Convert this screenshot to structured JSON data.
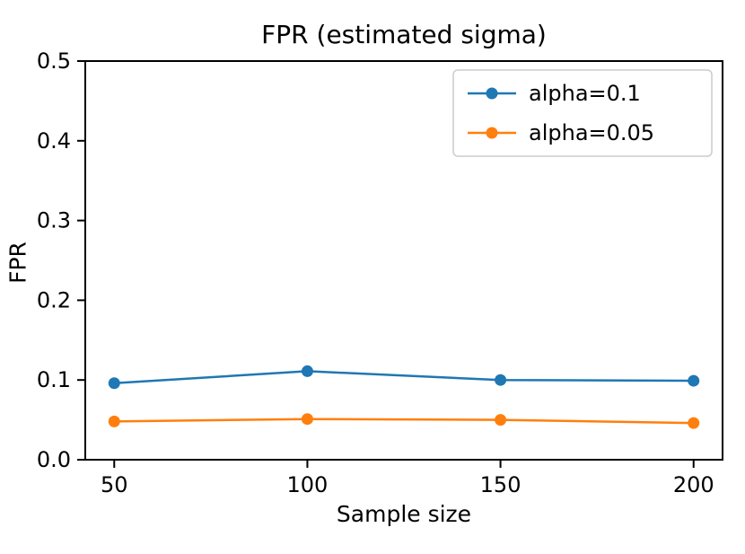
{
  "chart_data": {
    "type": "line",
    "title": "FPR (estimated sigma)",
    "xlabel": "Sample size",
    "ylabel": "FPR",
    "x": [
      50,
      100,
      150,
      200
    ],
    "series": [
      {
        "name": "alpha=0.1",
        "color": "#1f77b4",
        "values": [
          0.096,
          0.111,
          0.1,
          0.099
        ]
      },
      {
        "name": "alpha=0.05",
        "color": "#ff7f0e",
        "values": [
          0.048,
          0.051,
          0.05,
          0.046
        ]
      }
    ],
    "xlim": [
      42.5,
      207.5
    ],
    "ylim": [
      0.0,
      0.5
    ],
    "xticks": [
      50,
      100,
      150,
      200
    ],
    "yticks": [
      0.0,
      0.1,
      0.2,
      0.3,
      0.4,
      0.5
    ],
    "y_tick_decimals": 1,
    "grid": false,
    "legend_position": "upper right",
    "marker": "circle",
    "spine_color": "#000000",
    "legend_edge_color": "#cccccc",
    "background_color": "#ffffff"
  }
}
